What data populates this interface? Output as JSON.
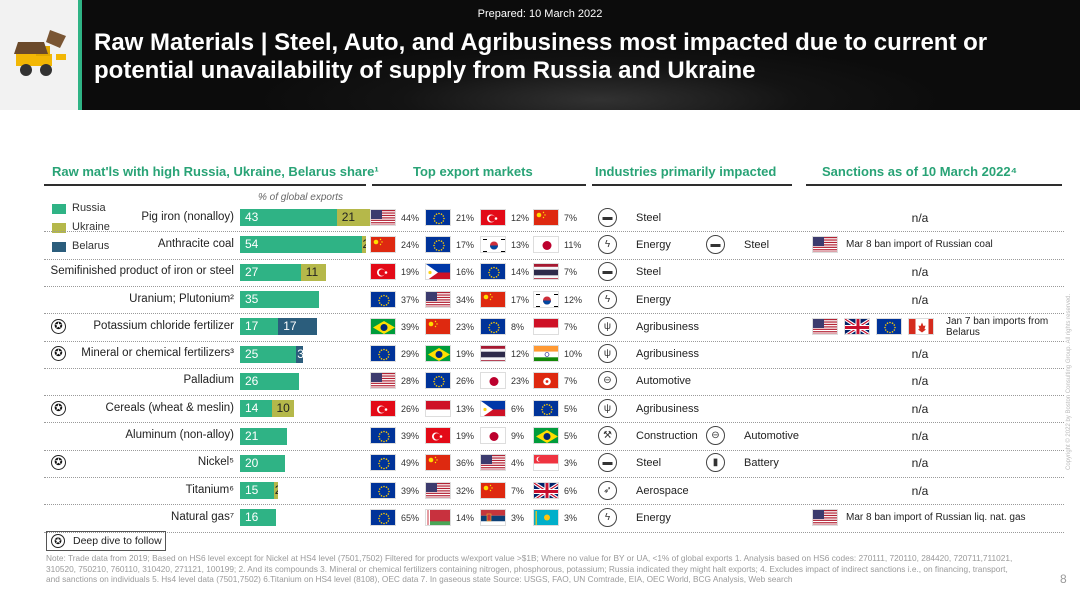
{
  "header": {
    "prepared": "Prepared: 10 March 2022",
    "title": "Raw Materials | Steel, Auto, and Agribusiness most impacted due to current or potential unavailability of supply from Russia and Ukraine"
  },
  "columns": {
    "materials": "Raw mat'ls with high Russia, Ukraine, Belarus share¹",
    "markets": "Top export markets",
    "industries": "Industries primarily impacted",
    "sanctions": "Sanctions as of 10 March 2022⁴"
  },
  "pct_label": "% of global exports",
  "legend": [
    {
      "name": "Russia",
      "color": "#2fb385"
    },
    {
      "name": "Ukraine",
      "color": "#b5b84a"
    },
    {
      "name": "Belarus",
      "color": "#2b5d7c"
    }
  ],
  "chart_data": {
    "type": "bar",
    "stacked": true,
    "orientation": "horizontal",
    "categories": [
      "Pig iron (nonalloy)",
      "Anthracite coal",
      "Semifinished product of iron or steel",
      "Uranium; Plutonium²",
      "Potassium chloride fertilizer",
      "Mineral or chemical fertilizers³",
      "Palladium",
      "Cereals (wheat & meslin)",
      "Aluminum (non-alloy)",
      "Nickel⁵",
      "Titanium⁶",
      "Natural gas⁷"
    ],
    "series": [
      {
        "name": "Russia",
        "values": [
          43,
          54,
          27,
          35,
          17,
          25,
          26,
          14,
          21,
          20,
          15,
          16
        ]
      },
      {
        "name": "Ukraine",
        "values": [
          21,
          2,
          11,
          0,
          0,
          0,
          0,
          10,
          0,
          0,
          2,
          0
        ]
      },
      {
        "name": "Belarus",
        "values": [
          0,
          0,
          0,
          0,
          17,
          3,
          0,
          0,
          0,
          0,
          0,
          0
        ]
      }
    ]
  },
  "rows": [
    {
      "star": false,
      "markets": [
        {
          "flag": "us",
          "pct": "44%"
        },
        {
          "flag": "eu",
          "pct": "21%"
        },
        {
          "flag": "tr",
          "pct": "12%"
        },
        {
          "flag": "cn",
          "pct": "7%"
        }
      ],
      "industries": [
        {
          "icon": "steel-icon",
          "glyph": "▬",
          "label": "Steel"
        }
      ],
      "sanction": {
        "type": "na",
        "text": "n/a"
      }
    },
    {
      "star": false,
      "markets": [
        {
          "flag": "cn",
          "pct": "24%"
        },
        {
          "flag": "eu",
          "pct": "17%"
        },
        {
          "flag": "kr",
          "pct": "13%"
        },
        {
          "flag": "jp",
          "pct": "11%"
        }
      ],
      "industries": [
        {
          "icon": "energy-icon",
          "glyph": "ϟ",
          "label": "Energy"
        },
        {
          "icon": "steel-icon",
          "glyph": "▬",
          "label": "Steel"
        }
      ],
      "sanction": {
        "type": "flags",
        "flags": [
          "us"
        ],
        "text": "Mar 8 ban import of Russian coal"
      }
    },
    {
      "star": false,
      "markets": [
        {
          "flag": "tr",
          "pct": "19%"
        },
        {
          "flag": "ph",
          "pct": "16%"
        },
        {
          "flag": "eu",
          "pct": "14%"
        },
        {
          "flag": "th",
          "pct": "7%"
        }
      ],
      "industries": [
        {
          "icon": "steel-icon",
          "glyph": "▬",
          "label": "Steel"
        }
      ],
      "sanction": {
        "type": "na",
        "text": "n/a"
      }
    },
    {
      "star": false,
      "markets": [
        {
          "flag": "eu",
          "pct": "37%"
        },
        {
          "flag": "us",
          "pct": "34%"
        },
        {
          "flag": "cn",
          "pct": "17%"
        },
        {
          "flag": "kr",
          "pct": "12%"
        }
      ],
      "industries": [
        {
          "icon": "energy-icon",
          "glyph": "ϟ",
          "label": "Energy"
        }
      ],
      "sanction": {
        "type": "na",
        "text": "n/a"
      }
    },
    {
      "star": true,
      "markets": [
        {
          "flag": "br",
          "pct": "39%"
        },
        {
          "flag": "cn",
          "pct": "23%"
        },
        {
          "flag": "eu",
          "pct": "8%"
        },
        {
          "flag": "id",
          "pct": "7%"
        }
      ],
      "industries": [
        {
          "icon": "wheat-icon",
          "glyph": "ψ",
          "label": "Agribusiness"
        }
      ],
      "sanction": {
        "type": "flags",
        "flags": [
          "us",
          "gb",
          "eu",
          "ca"
        ],
        "text": "Jan 7 ban imports from Belarus"
      }
    },
    {
      "star": true,
      "markets": [
        {
          "flag": "eu",
          "pct": "29%"
        },
        {
          "flag": "br",
          "pct": "19%"
        },
        {
          "flag": "th",
          "pct": "12%"
        },
        {
          "flag": "in",
          "pct": "10%"
        }
      ],
      "industries": [
        {
          "icon": "wheat-icon",
          "glyph": "ψ",
          "label": "Agribusiness"
        }
      ],
      "sanction": {
        "type": "na",
        "text": "n/a"
      }
    },
    {
      "star": false,
      "markets": [
        {
          "flag": "us",
          "pct": "28%"
        },
        {
          "flag": "eu",
          "pct": "26%"
        },
        {
          "flag": "jp",
          "pct": "23%"
        },
        {
          "flag": "hk",
          "pct": "7%"
        }
      ],
      "industries": [
        {
          "icon": "car-icon",
          "glyph": "⊖",
          "label": "Automotive"
        }
      ],
      "sanction": {
        "type": "na",
        "text": "n/a"
      }
    },
    {
      "star": true,
      "markets": [
        {
          "flag": "tr",
          "pct": "26%"
        },
        {
          "flag": "id",
          "pct": "13%"
        },
        {
          "flag": "ph",
          "pct": "6%"
        },
        {
          "flag": "eu",
          "pct": "5%"
        }
      ],
      "industries": [
        {
          "icon": "wheat-icon",
          "glyph": "ψ",
          "label": "Agribusiness"
        }
      ],
      "sanction": {
        "type": "na",
        "text": "n/a"
      }
    },
    {
      "star": false,
      "markets": [
        {
          "flag": "eu",
          "pct": "39%"
        },
        {
          "flag": "tr",
          "pct": "19%"
        },
        {
          "flag": "jp",
          "pct": "9%"
        },
        {
          "flag": "br",
          "pct": "5%"
        }
      ],
      "industries": [
        {
          "icon": "construction-icon",
          "glyph": "⚒",
          "label": "Construction"
        },
        {
          "icon": "car-icon",
          "glyph": "⊖",
          "label": "Automotive"
        }
      ],
      "sanction": {
        "type": "na",
        "text": "n/a"
      }
    },
    {
      "star": true,
      "markets": [
        {
          "flag": "eu",
          "pct": "49%"
        },
        {
          "flag": "cn",
          "pct": "36%"
        },
        {
          "flag": "us",
          "pct": "4%"
        },
        {
          "flag": "sg",
          "pct": "3%"
        }
      ],
      "industries": [
        {
          "icon": "steel-icon",
          "glyph": "▬",
          "label": "Steel"
        },
        {
          "icon": "battery-icon",
          "glyph": "▮",
          "label": "Battery"
        }
      ],
      "sanction": {
        "type": "na",
        "text": "n/a"
      }
    },
    {
      "star": false,
      "markets": [
        {
          "flag": "eu",
          "pct": "39%"
        },
        {
          "flag": "us",
          "pct": "32%"
        },
        {
          "flag": "cn",
          "pct": "7%"
        },
        {
          "flag": "gb",
          "pct": "6%"
        }
      ],
      "industries": [
        {
          "icon": "rocket-icon",
          "glyph": "➶",
          "label": "Aerospace"
        }
      ],
      "sanction": {
        "type": "na",
        "text": "n/a"
      }
    },
    {
      "star": false,
      "markets": [
        {
          "flag": "eu",
          "pct": "65%"
        },
        {
          "flag": "by",
          "pct": "14%"
        },
        {
          "flag": "rs",
          "pct": "3%"
        },
        {
          "flag": "kz",
          "pct": "3%"
        }
      ],
      "industries": [
        {
          "icon": "energy-icon",
          "glyph": "ϟ",
          "label": "Energy"
        }
      ],
      "sanction": {
        "type": "flags",
        "flags": [
          "us"
        ],
        "text": "Mar 8 ban import of Russian liq. nat. gas"
      }
    }
  ],
  "deep_dive_label": "Deep dive to follow",
  "note": "Note: Trade data from 2019; Based on HS6 level except for Nickel at HS4 level (7501,7502) Filtered for products w/export value >$1B; Where no value for BY or UA, <1% of global exports  1. Analysis based on HS6 codes: 270111, 720110, 284420, 720711,711021, 310520, 750210, 760110, 310420, 271121, 100199; 2. And its compounds 3. Mineral or chemical fertilizers containing nitrogen, phosphorous, potassium; Russia indicated they might halt exports; 4. Excludes impact of indirect sanctions i.e., on financing, transport, and sanctions on individuals 5. Hs4 level data (7501,7502) 6.Titanium on HS4 level (8108), OEC data 7. In gaseous state Source: USGS, FAO, UN Comtrade, EIA, OEC World, BCG Analysis, Web search",
  "page_number": "8",
  "copyright": "Copyright © 2022 by Boston Consulting Group. All rights reserved."
}
